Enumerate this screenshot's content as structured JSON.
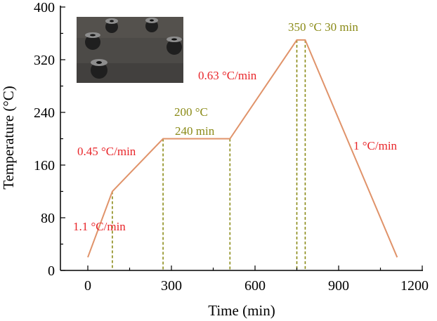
{
  "colors": {
    "profile": "#E0936A",
    "rate_text": "#E8262A",
    "hold_text": "#8A8A16",
    "guide": "#8A8A16",
    "axis": "#000000"
  },
  "chart_data": {
    "type": "line",
    "xlabel": "Time (min)",
    "ylabel": "Temperature (°C)",
    "xlim": [
      -120,
      1200
    ],
    "ylim": [
      0,
      400
    ],
    "x_ticks": [
      0,
      300,
      600,
      900,
      1200
    ],
    "y_ticks": [
      0,
      80,
      160,
      240,
      320,
      400
    ],
    "x_tick_labels": [
      "0",
      "300",
      "600",
      "900",
      "1200"
    ],
    "y_tick_labels": [
      "0",
      "80",
      "160",
      "240",
      "320",
      "400"
    ],
    "grid": false,
    "series": [
      {
        "x": [
          0,
          88,
          270,
          510,
          750,
          780,
          1110
        ],
        "y": [
          20,
          120,
          200,
          200,
          350,
          350,
          20
        ]
      }
    ],
    "guide_lines_x": [
      88,
      270,
      510,
      750,
      780
    ],
    "annotations": [
      {
        "text": "1.1 °C/min",
        "kind": "rate"
      },
      {
        "text": "0.45 °C/min",
        "kind": "rate"
      },
      {
        "text": "200 °C",
        "kind": "hold"
      },
      {
        "text": "240 min",
        "kind": "hold"
      },
      {
        "text": "0.63 °C/min",
        "kind": "rate"
      },
      {
        "text": "350 °C 30 min",
        "kind": "hold"
      },
      {
        "text": "1 °C/min",
        "kind": "rate"
      }
    ]
  }
}
